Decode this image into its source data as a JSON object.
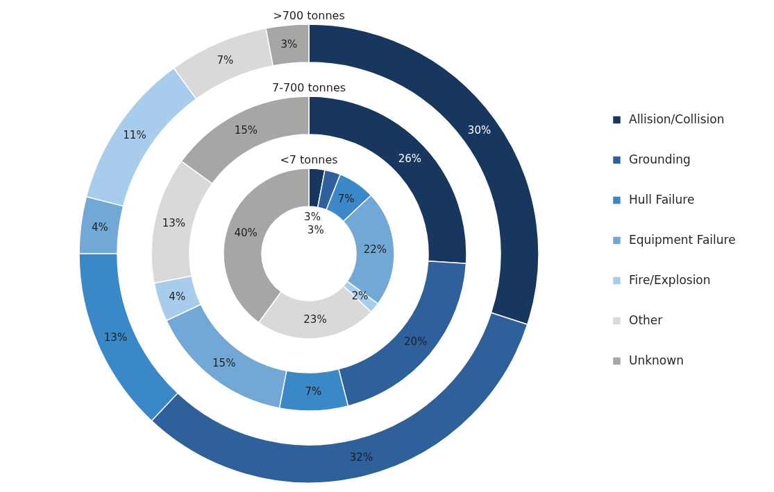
{
  "chart_data": {
    "type": "donut",
    "categories": [
      "Allision/Collision",
      "Grounding",
      "Hull Failure",
      "Equipment Failure",
      "Fire/Explosion",
      "Other",
      "Unknown"
    ],
    "colors": [
      "#17375e",
      "#2e619c",
      "#3a88c8",
      "#72a8d5",
      "#a8cdec",
      "#d9d9d9",
      "#a6a6a6"
    ],
    "legend": "right",
    "series": [
      {
        "name": ">700 tonnes",
        "values": [
          30,
          32,
          13,
          4,
          11,
          7,
          3
        ],
        "value_labels": [
          "30%",
          "32%",
          "13%",
          "4%",
          "11%",
          "7%",
          "3%"
        ]
      },
      {
        "name": "7-700 tonnes",
        "values": [
          26,
          20,
          7,
          15,
          4,
          13,
          15
        ],
        "value_labels": [
          "26%",
          "20%",
          "7%",
          "15%",
          "4%",
          "13%",
          "15%"
        ]
      },
      {
        "name": "<7 tonnes",
        "values": [
          3,
          3,
          7,
          22,
          2,
          23,
          40
        ],
        "value_labels": [
          "3%",
          "3%",
          "7%",
          "22%",
          "2%",
          "23%",
          "40%"
        ]
      }
    ]
  }
}
